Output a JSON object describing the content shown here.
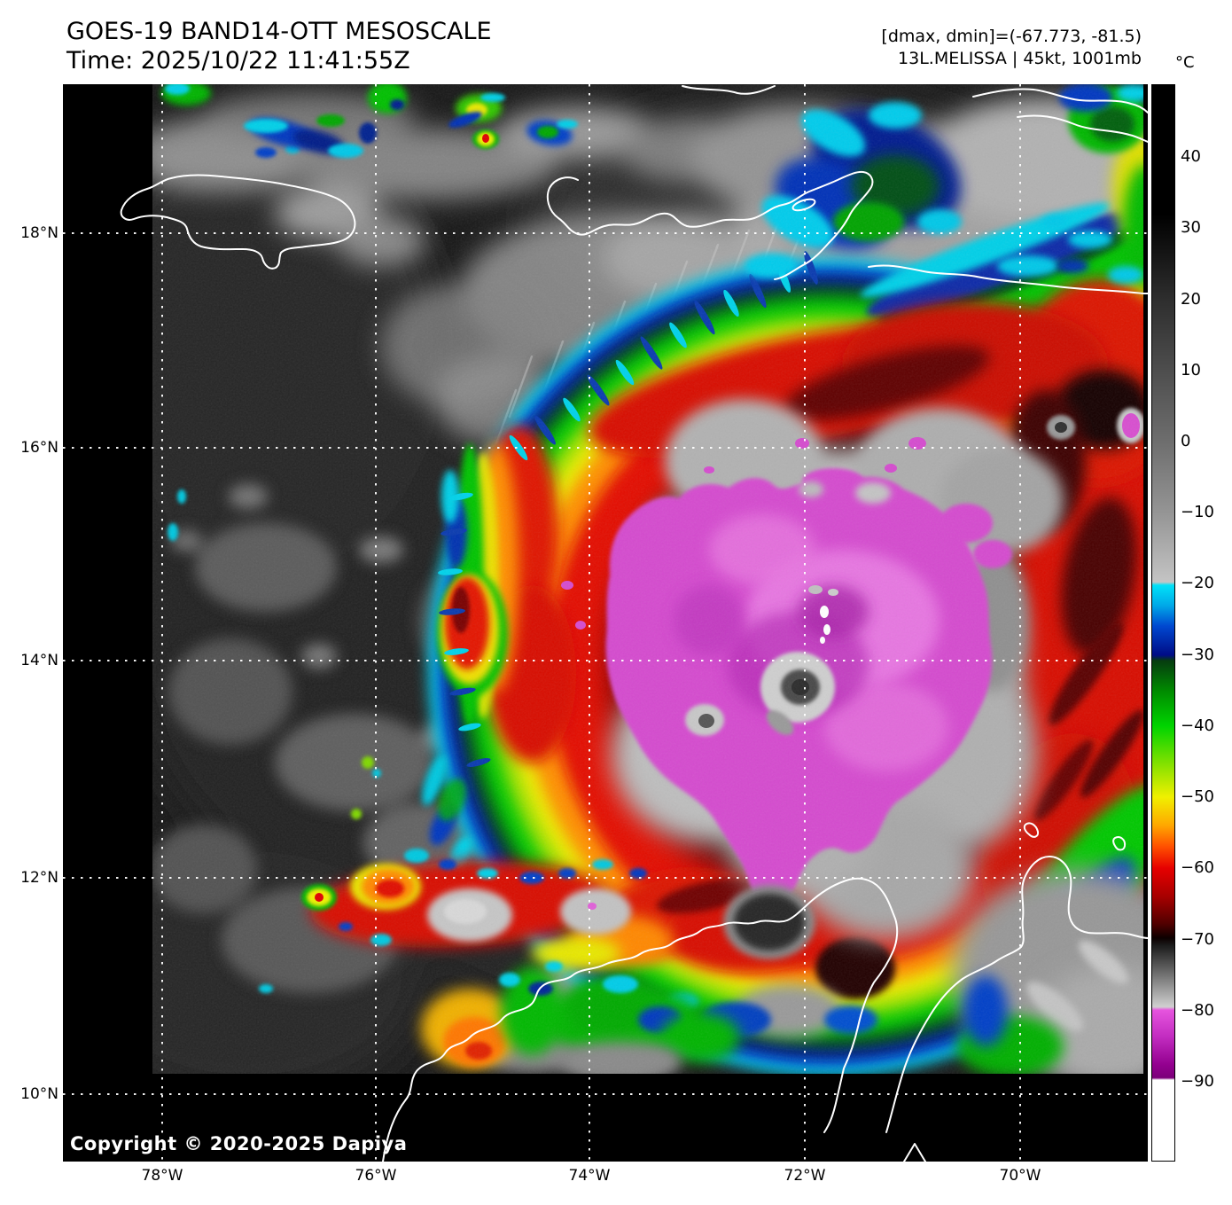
{
  "header": {
    "title": "GOES-19 BAND14-OTT MESOSCALE",
    "time": "Time: 2025/10/22 11:41:55Z",
    "range": "[dmax, dmin]=(-67.773, -81.5)",
    "storm": "13L.MELISSA | 45kt, 1001mb"
  },
  "colorbar": {
    "unit": "°C",
    "ticks": [
      {
        "label": "40",
        "value": 40
      },
      {
        "label": "30",
        "value": 30
      },
      {
        "label": "20",
        "value": 20
      },
      {
        "label": "10",
        "value": 10
      },
      {
        "label": "0",
        "value": 0
      },
      {
        "label": "−10",
        "value": -10
      },
      {
        "label": "−20",
        "value": -20
      },
      {
        "label": "−30",
        "value": -30
      },
      {
        "label": "−40",
        "value": -40
      },
      {
        "label": "−50",
        "value": -50
      },
      {
        "label": "−60",
        "value": -60
      },
      {
        "label": "−70",
        "value": -70
      },
      {
        "label": "−80",
        "value": -80
      },
      {
        "label": "−90",
        "value": -90
      }
    ],
    "gradient_stops": [
      {
        "p": "0%",
        "c": "#000000"
      },
      {
        "p": "12%",
        "c": "#000000"
      },
      {
        "p": "20%",
        "c": "#2e2e2e"
      },
      {
        "p": "26.6%",
        "c": "#4e4e4e"
      },
      {
        "p": "33.2%",
        "c": "#6e6e6e"
      },
      {
        "p": "39.8%",
        "c": "#959595"
      },
      {
        "p": "46.2%",
        "c": "#c4c4c4"
      },
      {
        "p": "46.5%",
        "c": "#00e2f8"
      },
      {
        "p": "48.4%",
        "c": "#00a8e8"
      },
      {
        "p": "50.3%",
        "c": "#0048d0"
      },
      {
        "p": "53%",
        "c": "#000c86"
      },
      {
        "p": "53.5%",
        "c": "#063c10"
      },
      {
        "p": "56.3%",
        "c": "#008a00"
      },
      {
        "p": "59.6%",
        "c": "#00d400"
      },
      {
        "p": "62.9%",
        "c": "#7ce000"
      },
      {
        "p": "66.2%",
        "c": "#f0f000"
      },
      {
        "p": "68.8%",
        "c": "#ffa800"
      },
      {
        "p": "70.8%",
        "c": "#ff5000"
      },
      {
        "p": "72.8%",
        "c": "#e60000"
      },
      {
        "p": "75.4%",
        "c": "#a80000"
      },
      {
        "p": "78%",
        "c": "#500000"
      },
      {
        "p": "79.3%",
        "c": "#0c0000"
      },
      {
        "p": "80%",
        "c": "#1c1c1c"
      },
      {
        "p": "82.6%",
        "c": "#6e6e6e"
      },
      {
        "p": "85.7%",
        "c": "#d0d0d0"
      },
      {
        "p": "86%",
        "c": "#e654de"
      },
      {
        "p": "88.5%",
        "c": "#c22cc0"
      },
      {
        "p": "91.1%",
        "c": "#93008f"
      },
      {
        "p": "92.3%",
        "c": "#7c007a"
      },
      {
        "p": "92.5%",
        "c": "#ffffff"
      },
      {
        "p": "100%",
        "c": "#ffffff"
      }
    ]
  },
  "map": {
    "lat_labels": [
      "18°N",
      "16°N",
      "14°N",
      "12°N",
      "10°N"
    ],
    "lon_labels": [
      "78°W",
      "76°W",
      "74°W",
      "72°W",
      "70°W"
    ],
    "copyright": "Copyright © 2020-2025 Dapiya"
  },
  "palette": {
    "page_bg": "#ffffff",
    "text": "#000000",
    "map_background": "#000000",
    "sea_dark": "#181818",
    "cirrus_gray": "#a6a6a6",
    "cdo_gray": "#b6b6b6",
    "magenta_core": "#d54ccf",
    "eyewall_red": "#e41000",
    "band_orange": "#ff9000",
    "band_yellow": "#ecec00",
    "band_green": "#00c800",
    "band_navy": "#001488",
    "band_cyan": "#00d0e8",
    "coastline": "#ffffff",
    "gridline": "#ffffff"
  }
}
